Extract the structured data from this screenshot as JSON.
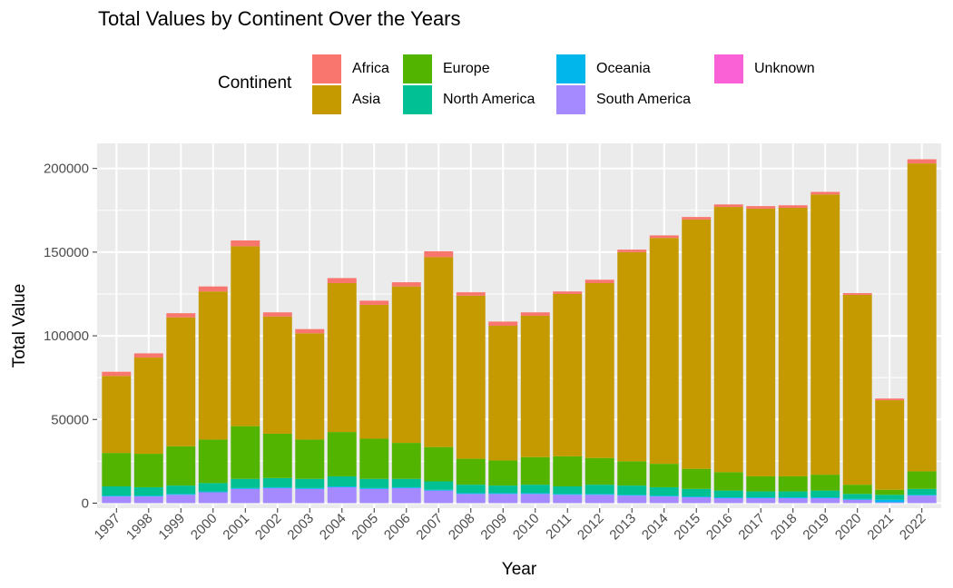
{
  "chart_data": {
    "type": "bar",
    "stacked": true,
    "title": "Total Values by Continent Over the Years",
    "xlabel": "Year",
    "ylabel": "Total Value",
    "ylim": [
      -3000,
      215000
    ],
    "yticks": [
      0,
      50000,
      100000,
      150000,
      200000
    ],
    "ytick_labels": [
      "0",
      "50000",
      "100000",
      "150000",
      "200000"
    ],
    "legend_title": "Continent",
    "legend_position": "top",
    "grid": true,
    "categories": [
      "1997",
      "1998",
      "1999",
      "2000",
      "2001",
      "2002",
      "2003",
      "2004",
      "2005",
      "2006",
      "2007",
      "2008",
      "2009",
      "2010",
      "2011",
      "2012",
      "2013",
      "2014",
      "2015",
      "2016",
      "2017",
      "2018",
      "2019",
      "2020",
      "2021",
      "2022"
    ],
    "series": [
      {
        "name": "Africa",
        "color": "#F8766D",
        "values": [
          2500,
          2500,
          2500,
          3000,
          3500,
          2500,
          2500,
          3000,
          2500,
          2500,
          3500,
          2000,
          2500,
          2000,
          1500,
          2000,
          1500,
          1500,
          1500,
          1500,
          1500,
          1500,
          1500,
          1000,
          1000,
          2500
        ]
      },
      {
        "name": "Asia",
        "color": "#C49A00",
        "values": [
          46000,
          57500,
          77000,
          88500,
          107500,
          70000,
          63500,
          89000,
          80000,
          93500,
          113500,
          97500,
          80500,
          84500,
          97000,
          104500,
          125000,
          135000,
          149000,
          158500,
          160000,
          160500,
          167500,
          113500,
          53500,
          184000
        ]
      },
      {
        "name": "Europe",
        "color": "#53B400",
        "values": [
          20000,
          20000,
          23500,
          26000,
          31500,
          26500,
          23500,
          26500,
          24000,
          21500,
          20500,
          15500,
          15000,
          16500,
          18000,
          16000,
          14500,
          14000,
          12000,
          11000,
          9000,
          9000,
          9500,
          5500,
          3000,
          10500
        ]
      },
      {
        "name": "North America",
        "color": "#00C094",
        "values": [
          5500,
          5000,
          5000,
          5000,
          5500,
          5500,
          5500,
          6000,
          5500,
          5000,
          5000,
          5000,
          4500,
          5000,
          4500,
          5500,
          5500,
          5000,
          4500,
          4000,
          3500,
          3500,
          4000,
          3000,
          3000,
          3500
        ]
      },
      {
        "name": "Oceania",
        "color": "#00B6EB",
        "values": [
          500,
          500,
          500,
          500,
          500,
          500,
          500,
          500,
          500,
          500,
          500,
          500,
          500,
          500,
          500,
          500,
          500,
          500,
          500,
          500,
          500,
          500,
          500,
          500,
          1500,
          500
        ]
      },
      {
        "name": "South America",
        "color": "#A58AFF",
        "values": [
          4000,
          4000,
          5000,
          6500,
          8500,
          9000,
          8500,
          9500,
          8500,
          9000,
          7500,
          5500,
          5500,
          5500,
          5000,
          5000,
          4500,
          4000,
          3500,
          3000,
          3000,
          3000,
          3000,
          2000,
          500,
          4500
        ]
      },
      {
        "name": "Unknown",
        "color": "#FB61D7",
        "values": [
          0,
          0,
          0,
          0,
          0,
          0,
          0,
          0,
          0,
          0,
          0,
          0,
          0,
          0,
          0,
          0,
          0,
          0,
          0,
          0,
          0,
          0,
          0,
          0,
          0,
          0
        ]
      }
    ]
  },
  "legend": {
    "title": "Continent",
    "items": [
      {
        "label": "Africa",
        "color": "#F8766D"
      },
      {
        "label": "Asia",
        "color": "#C49A00"
      },
      {
        "label": "Europe",
        "color": "#53B400"
      },
      {
        "label": "North America",
        "color": "#00C094"
      },
      {
        "label": "Oceania",
        "color": "#00B6EB"
      },
      {
        "label": "South America",
        "color": "#A58AFF"
      },
      {
        "label": "Unknown",
        "color": "#FB61D7"
      }
    ]
  },
  "colors": {
    "panel": "#EBEBEB",
    "grid": "#FFFFFF",
    "tick_text": "#4D4D4D"
  }
}
